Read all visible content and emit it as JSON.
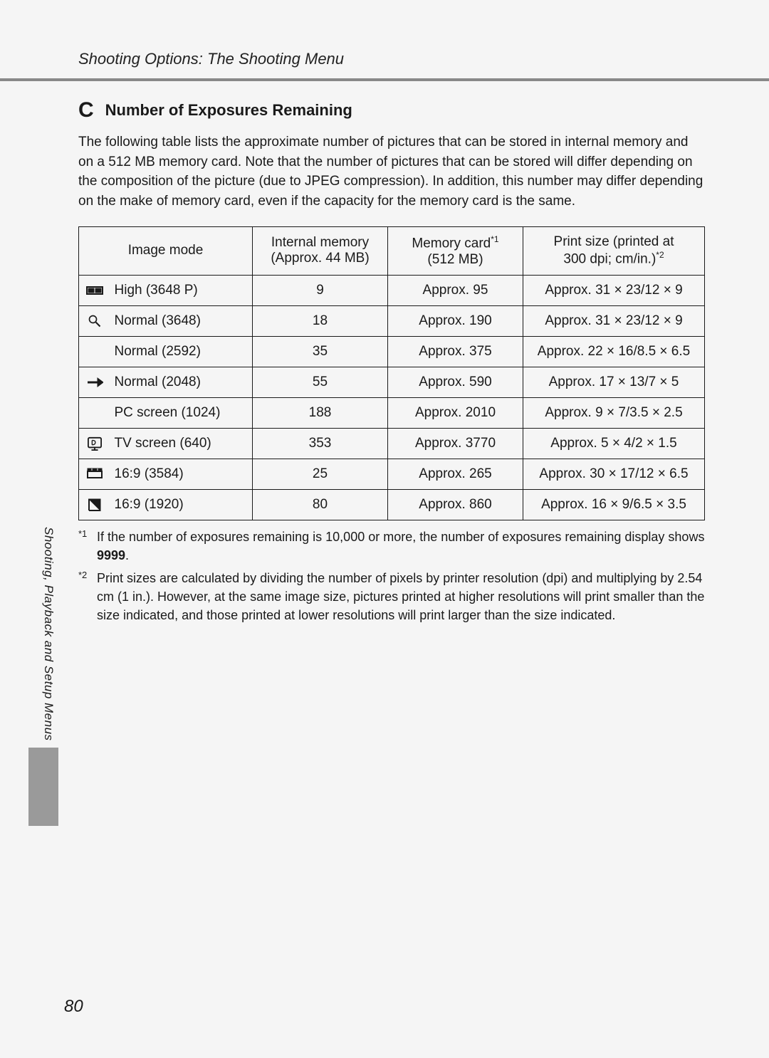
{
  "header": {
    "section_title": "Shooting Options: The Shooting Menu"
  },
  "subtitle": {
    "marker": "C",
    "text": "Number of Exposures Remaining"
  },
  "intro": "The following table lists the approximate number of pictures that can be stored in internal memory and on a 512 MB memory card. Note that the number of pictures that can be stored will differ depending on the composition of the picture (due to JPEG compression). In addition, this number may differ depending on the make of memory card, even if the capacity for the memory card is the same.",
  "table": {
    "headers": {
      "mode": "Image mode",
      "internal_top": "Internal memory",
      "internal_bottom": "(Approx. 44 MB)",
      "card_top": "Memory card",
      "card_sup": "*1",
      "card_bottom": "(512 MB)",
      "print_top": "Print size (printed at",
      "print_bottom": "300 dpi; cm/in.)",
      "print_sup": "*2"
    },
    "rows": [
      {
        "icon": "pano",
        "mode": "High (3648 P)",
        "internal": "9",
        "card": "Approx. 95",
        "print": "Approx. 31 × 23/12 × 9"
      },
      {
        "icon": "mag",
        "mode": "Normal (3648)",
        "internal": "18",
        "card": "Approx. 190",
        "print": "Approx. 31 × 23/12 × 9"
      },
      {
        "icon": "",
        "mode": "Normal (2592)",
        "internal": "35",
        "card": "Approx. 375",
        "print": "Approx. 22 × 16/8.5 × 6.5"
      },
      {
        "icon": "arrow",
        "mode": "Normal (2048)",
        "internal": "55",
        "card": "Approx. 590",
        "print": "Approx. 17 × 13/7 × 5"
      },
      {
        "icon": "",
        "mode": "PC screen (1024)",
        "internal": "188",
        "card": "Approx. 2010",
        "print": "Approx. 9 × 7/3.5 × 2.5"
      },
      {
        "icon": "tv",
        "mode": "TV screen (640)",
        "internal": "353",
        "card": "Approx. 3770",
        "print": "Approx. 5 × 4/2 × 1.5"
      },
      {
        "icon": "wide",
        "mode": "16:9 (3584)",
        "internal": "25",
        "card": "Approx. 265",
        "print": "Approx. 30 × 17/12 × 6.5"
      },
      {
        "icon": "half",
        "mode": "16:9 (1920)",
        "internal": "80",
        "card": "Approx. 860",
        "print": "Approx. 16 × 9/6.5 × 3.5"
      }
    ]
  },
  "footnotes": {
    "fn1_marker": "*1",
    "fn1_text_a": "If the number of exposures remaining is 10,000 or more, the number of exposures remaining display shows ",
    "fn1_bold": "9999",
    "fn1_text_b": ".",
    "fn2_marker": "*2",
    "fn2_text": "Print sizes are calculated by dividing the number of pixels by printer resolution (dpi) and multiplying by 2.54 cm (1 in.). However, at the same image size, pictures printed at higher resolutions will print smaller than the size indicated, and those printed at lower resolutions will print larger than the size indicated."
  },
  "side_text": "Shooting, Playback and Setup Menus",
  "page_number": "80",
  "colors": {
    "background": "#f5f5f5",
    "text": "#1a1a1a",
    "underline": "#888888",
    "side_tab": "#9a9a9a",
    "border": "#1a1a1a"
  }
}
